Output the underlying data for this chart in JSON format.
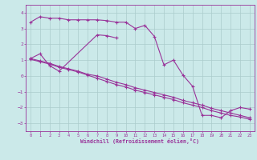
{
  "background_color": "#cbe9e9",
  "grid_color": "#aacccc",
  "line_color": "#993399",
  "spine_color": "#993399",
  "xlim": [
    -0.5,
    23.5
  ],
  "ylim": [
    -3.5,
    4.5
  ],
  "yticks": [
    -3,
    -2,
    -1,
    0,
    1,
    2,
    3,
    4
  ],
  "xticks": [
    0,
    1,
    2,
    3,
    4,
    5,
    6,
    7,
    8,
    9,
    10,
    11,
    12,
    13,
    14,
    15,
    16,
    17,
    18,
    19,
    20,
    21,
    22,
    23
  ],
  "xlabel": "Windchill (Refroidissement éolien,°C)",
  "series1_x": [
    0,
    1,
    2,
    3,
    4,
    5,
    6,
    7,
    8,
    9,
    10,
    11,
    12,
    13,
    14,
    15,
    16,
    17,
    18,
    19,
    20,
    21,
    22,
    23
  ],
  "series1_y": [
    3.4,
    3.75,
    3.65,
    3.65,
    3.55,
    3.55,
    3.55,
    3.55,
    3.5,
    3.4,
    3.4,
    3.0,
    3.2,
    2.5,
    0.7,
    1.0,
    0.05,
    -0.65,
    -2.5,
    -2.5,
    -2.65,
    -2.2,
    -2.0,
    -2.1
  ],
  "series2_x": [
    0,
    1,
    2,
    3,
    7,
    8,
    9
  ],
  "series2_y": [
    1.1,
    1.4,
    0.65,
    0.3,
    2.6,
    2.55,
    2.4
  ],
  "series3_x": [
    0,
    1,
    2,
    3,
    4,
    5,
    6,
    7,
    8,
    9,
    10,
    11,
    12,
    13,
    14,
    15,
    16,
    17,
    18,
    19,
    20,
    21,
    22,
    23
  ],
  "series3_y": [
    1.1,
    0.95,
    0.8,
    0.6,
    0.45,
    0.3,
    0.1,
    0.0,
    -0.2,
    -0.4,
    -0.55,
    -0.75,
    -0.9,
    -1.05,
    -1.2,
    -1.35,
    -1.55,
    -1.7,
    -1.85,
    -2.05,
    -2.2,
    -2.35,
    -2.5,
    -2.65
  ],
  "series4_x": [
    0,
    1,
    2,
    3,
    4,
    5,
    6,
    7,
    8,
    9,
    10,
    11,
    12,
    13,
    14,
    15,
    16,
    17,
    18,
    19,
    20,
    21,
    22,
    23
  ],
  "series4_y": [
    1.05,
    0.9,
    0.75,
    0.55,
    0.4,
    0.25,
    0.05,
    -0.15,
    -0.35,
    -0.55,
    -0.7,
    -0.9,
    -1.05,
    -1.2,
    -1.35,
    -1.5,
    -1.7,
    -1.85,
    -2.0,
    -2.2,
    -2.35,
    -2.5,
    -2.6,
    -2.75
  ]
}
